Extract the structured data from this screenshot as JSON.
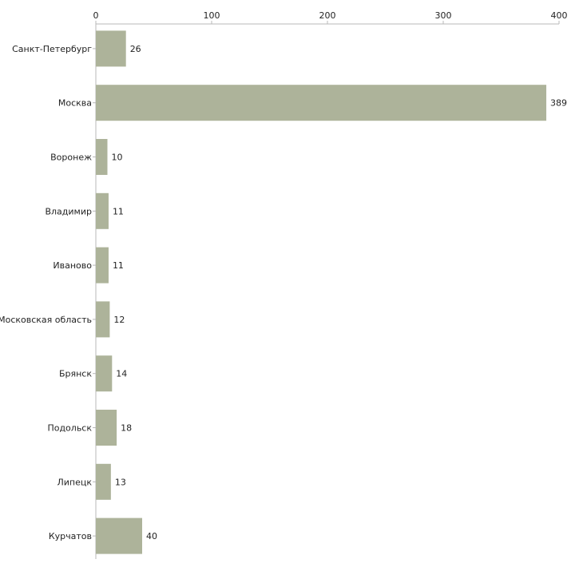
{
  "colors": {
    "bar": "#adb39a",
    "axis": "#b8b8b8",
    "text": "#222222",
    "background": "#ffffff"
  },
  "chart_data": {
    "type": "bar",
    "orientation": "horizontal",
    "title": "",
    "xlabel": "",
    "ylabel": "",
    "xlim": [
      0,
      400
    ],
    "ticks": [
      0,
      100,
      200,
      300,
      400
    ],
    "tick_labels": [
      "0",
      "100",
      "200",
      "300",
      "400"
    ],
    "grid": false,
    "axis_position": "top",
    "categories": [
      "Санкт-Петербург",
      "Москва",
      "Воронеж",
      "Владимир",
      "Иваново",
      "Московская область",
      "Брянск",
      "Подольск",
      "Липецк",
      "Курчатов"
    ],
    "values": [
      26,
      389,
      10,
      11,
      11,
      12,
      14,
      18,
      13,
      40
    ],
    "data_labels": [
      "26",
      "389",
      "10",
      "11",
      "11",
      "12",
      "14",
      "18",
      "13",
      "40"
    ]
  }
}
